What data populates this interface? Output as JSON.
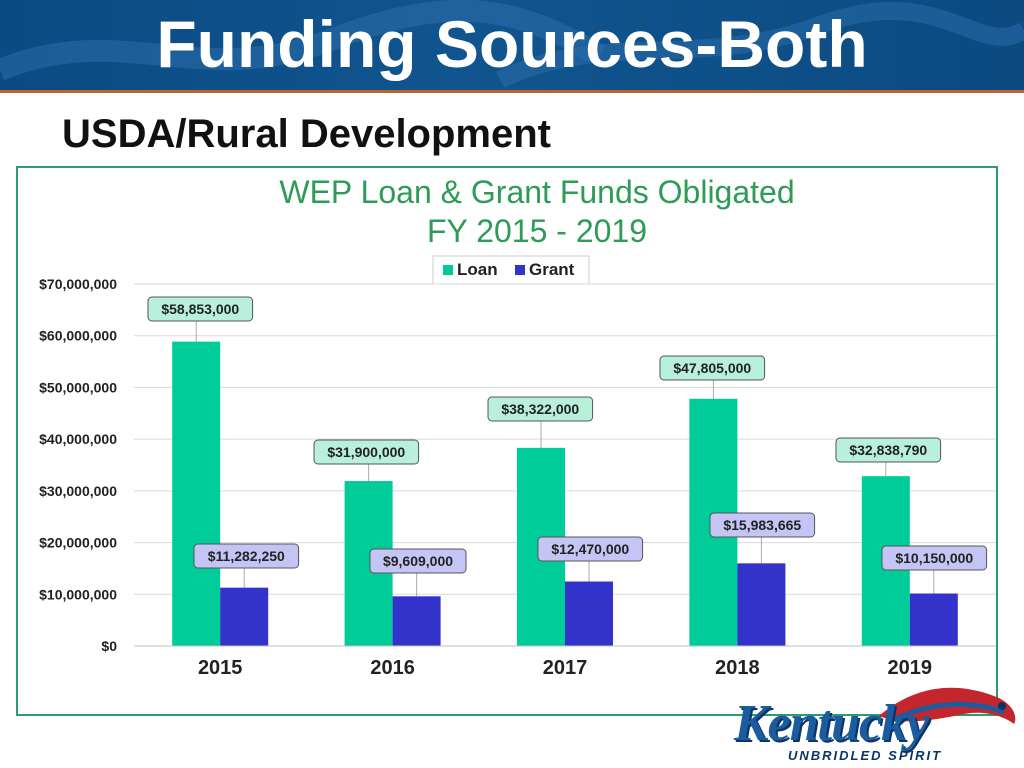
{
  "slide": {
    "title": "Funding Sources-Both",
    "subtitle": "USDA/Rural Development"
  },
  "logo": {
    "wordmark": "Kentucky",
    "tagline": "UNBRIDLED SPIRIT"
  },
  "colors": {
    "header": "#0f5390",
    "loan": "#00cc99",
    "grant": "#3333cc",
    "title": "#2e9b57"
  },
  "chart_data": {
    "type": "bar",
    "title": "WEP Loan & Grant Funds Obligated",
    "subtitle": "FY 2015 - 2019",
    "categories": [
      "2015",
      "2016",
      "2017",
      "2018",
      "2019"
    ],
    "series": [
      {
        "name": "Loan",
        "values": [
          58853000,
          31900000,
          38322000,
          47805000,
          32838790
        ],
        "labels": [
          "$58,853,000",
          "$31,900,000",
          "$38,322,000",
          "$47,805,000",
          "$32,838,790"
        ]
      },
      {
        "name": "Grant",
        "values": [
          11282250,
          9609000,
          12470000,
          15983665,
          10150000
        ],
        "labels": [
          "$11,282,250",
          "$9,609,000",
          "$12,470,000",
          "$15,983,665",
          "$10,150,000"
        ]
      }
    ],
    "ylim": [
      0,
      70000000
    ],
    "yticks": [
      "$0",
      "$10,000,000",
      "$20,000,000",
      "$30,000,000",
      "$40,000,000",
      "$50,000,000",
      "$60,000,000",
      "$70,000,000"
    ],
    "grid": true,
    "legend": "top-center"
  }
}
